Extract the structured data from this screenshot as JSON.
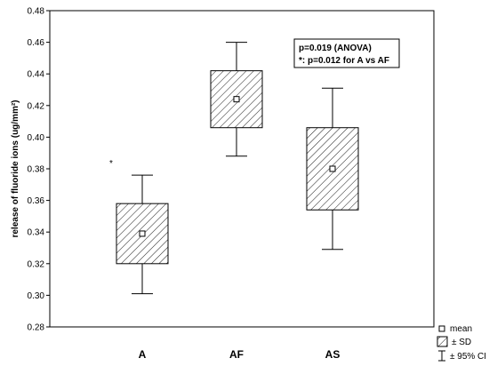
{
  "chart_data": {
    "type": "box",
    "ylabel": "release of fluoride ions (ug/mm²)",
    "ylim": [
      0.28,
      0.48
    ],
    "yticks": [
      "0.28",
      "0.30",
      "0.32",
      "0.34",
      "0.36",
      "0.38",
      "0.40",
      "0.42",
      "0.44",
      "0.46",
      "0.48"
    ],
    "categories": [
      "A",
      "AF",
      "AS"
    ],
    "groups": [
      {
        "category": "A",
        "mean": 0.339,
        "sd_low": 0.32,
        "sd_high": 0.358,
        "ci_low": 0.301,
        "ci_high": 0.376,
        "marker": "*"
      },
      {
        "category": "AF",
        "mean": 0.424,
        "sd_low": 0.406,
        "sd_high": 0.442,
        "ci_low": 0.388,
        "ci_high": 0.46,
        "marker": ""
      },
      {
        "category": "AS",
        "mean": 0.38,
        "sd_low": 0.354,
        "sd_high": 0.406,
        "ci_low": 0.329,
        "ci_high": 0.431,
        "marker": ""
      }
    ],
    "annotations": [
      "p=0.019 (ANOVA)",
      "*: p=0.012  for A vs AF"
    ],
    "legend": {
      "placement": "bottom-right",
      "items": [
        {
          "symbol": "square",
          "label": "mean"
        },
        {
          "symbol": "hatched-box",
          "label": "± SD"
        },
        {
          "symbol": "whisker",
          "label": "± 95% CI"
        }
      ]
    },
    "grid": false,
    "colors": {
      "line": "#000000",
      "box_fill": "#ffffff",
      "hatch": "#000000"
    }
  }
}
